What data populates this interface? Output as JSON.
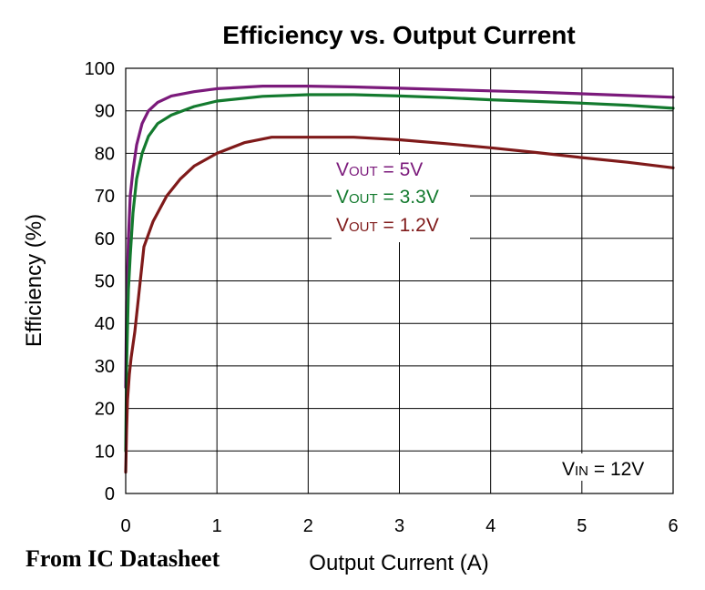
{
  "chart_data": {
    "type": "line",
    "title": "Efficiency vs. Output Current",
    "xlabel": "Output Current (A)",
    "ylabel": "Efficiency (%)",
    "xlim": [
      0,
      6
    ],
    "ylim": [
      0,
      100
    ],
    "xticks": [
      "0",
      "1",
      "2",
      "3",
      "4",
      "5",
      "6"
    ],
    "yticks": [
      "0",
      "10",
      "20",
      "30",
      "40",
      "50",
      "60",
      "70",
      "80",
      "90",
      "100"
    ],
    "grid": true,
    "annotation": {
      "prefix": "V",
      "subscript": "IN",
      "suffix": " = 12V"
    },
    "series": [
      {
        "name": "VOUT = 5V",
        "legend_prefix": "V",
        "legend_subscript": "OUT",
        "legend_suffix": " = 5V",
        "color": "#7b1a7b",
        "x": [
          0,
          0.01,
          0.03,
          0.05,
          0.08,
          0.12,
          0.18,
          0.25,
          0.35,
          0.5,
          0.75,
          1.0,
          1.5,
          2.0,
          2.5,
          3.0,
          3.5,
          4.0,
          4.5,
          5.0,
          5.5,
          6.0
        ],
        "y": [
          25,
          45,
          60,
          70,
          76,
          82,
          87,
          90,
          92,
          93.5,
          94.5,
          95.2,
          95.8,
          95.8,
          95.6,
          95.3,
          95.0,
          94.7,
          94.4,
          94.0,
          93.6,
          93.2
        ]
      },
      {
        "name": "VOUT = 3.3V",
        "legend_prefix": "V",
        "legend_subscript": "OUT",
        "legend_suffix": " = 3.3V",
        "color": "#137a2e",
        "x": [
          0,
          0.01,
          0.03,
          0.05,
          0.08,
          0.12,
          0.18,
          0.25,
          0.35,
          0.5,
          0.75,
          1.0,
          1.5,
          2.0,
          2.5,
          3.0,
          3.5,
          4.0,
          4.5,
          5.0,
          5.5,
          6.0
        ],
        "y": [
          10,
          30,
          48,
          56,
          66,
          74,
          80,
          84,
          87,
          89,
          91,
          92.3,
          93.4,
          93.8,
          93.8,
          93.5,
          93.1,
          92.6,
          92.2,
          91.8,
          91.3,
          90.6
        ]
      },
      {
        "name": "VOUT = 1.2V",
        "legend_prefix": "V",
        "legend_subscript": "OUT",
        "legend_suffix": " = 1.2V",
        "color": "#7f1a1a",
        "x": [
          0,
          0.01,
          0.02,
          0.04,
          0.06,
          0.1,
          0.15,
          0.2,
          0.3,
          0.45,
          0.6,
          0.75,
          1.0,
          1.3,
          1.6,
          2.0,
          2.5,
          3.0,
          3.5,
          4.0,
          4.5,
          5.0,
          5.5,
          6.0
        ],
        "y": [
          5,
          15,
          22,
          28,
          32,
          38,
          48,
          58,
          64,
          70,
          74,
          77,
          80,
          82.5,
          83.8,
          83.8,
          83.8,
          83.2,
          82.3,
          81.3,
          80.2,
          79.0,
          77.9,
          76.6
        ]
      }
    ]
  },
  "source_note": "From IC Datasheet"
}
